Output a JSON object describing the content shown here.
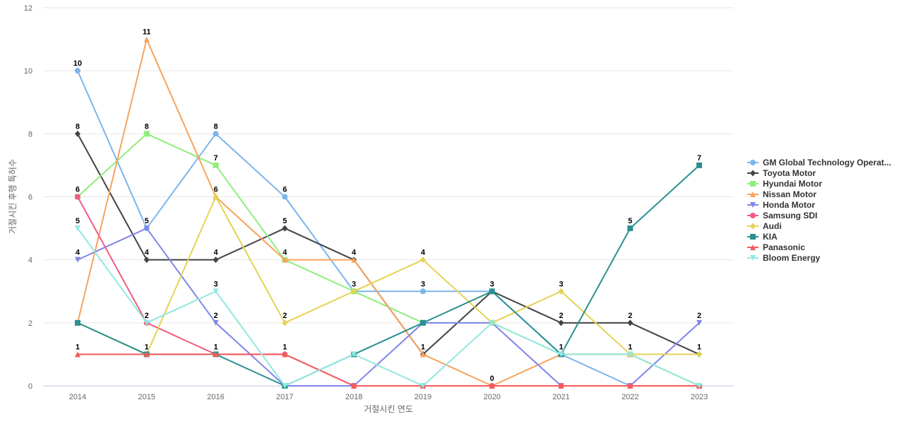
{
  "chart_data": {
    "type": "line",
    "xlabel": "거절시킨 연도",
    "ylabel": "거절시킨 후행 특허수",
    "ylim": [
      0,
      12
    ],
    "yticks": [
      0,
      2,
      4,
      6,
      8,
      10,
      12
    ],
    "categories": [
      "2014",
      "2015",
      "2016",
      "2017",
      "2018",
      "2019",
      "2020",
      "2021",
      "2022",
      "2023"
    ],
    "grid": true,
    "legend_position": "right",
    "series": [
      {
        "name": "GM Global Technology Operat...",
        "color": "#7cb5ec",
        "marker": "circle",
        "values": [
          10,
          5,
          8,
          6,
          3,
          3,
          3,
          1,
          0,
          0
        ],
        "labels": [
          true,
          true,
          true,
          true,
          true,
          true,
          false,
          false,
          false,
          false
        ]
      },
      {
        "name": "Toyota Motor",
        "color": "#434348",
        "marker": "diamond",
        "values": [
          8,
          4,
          4,
          5,
          4,
          1,
          3,
          2,
          2,
          1
        ],
        "labels": [
          true,
          true,
          true,
          true,
          true,
          true,
          true,
          true,
          true,
          true
        ]
      },
      {
        "name": "Hyundai Motor",
        "color": "#90ed7d",
        "marker": "square",
        "values": [
          6,
          8,
          7,
          4,
          3,
          2,
          2,
          1,
          1,
          0
        ],
        "labels": [
          false,
          true,
          true,
          true,
          false,
          false,
          false,
          false,
          false,
          false
        ]
      },
      {
        "name": "Nissan Motor",
        "color": "#f7a35c",
        "marker": "triangle",
        "values": [
          2,
          11,
          6,
          4,
          4,
          1,
          0,
          1,
          1,
          0
        ],
        "labels": [
          false,
          true,
          true,
          false,
          false,
          false,
          true,
          false,
          false,
          false
        ]
      },
      {
        "name": "Honda Motor",
        "color": "#8085e9",
        "marker": "triangle-down",
        "values": [
          4,
          5,
          2,
          0,
          0,
          2,
          2,
          0,
          0,
          2
        ],
        "labels": [
          true,
          true,
          true,
          false,
          false,
          false,
          false,
          false,
          false,
          true
        ]
      },
      {
        "name": "Samsung SDI",
        "color": "#f15c80",
        "marker": "circle",
        "values": [
          6,
          2,
          1,
          1,
          0,
          0,
          0,
          0,
          0,
          0
        ],
        "labels": [
          true,
          true,
          false,
          false,
          false,
          false,
          false,
          false,
          false,
          false
        ]
      },
      {
        "name": "Audi",
        "color": "#e4d354",
        "marker": "diamond",
        "values": [
          2,
          1,
          6,
          2,
          3,
          4,
          2,
          3,
          1,
          1
        ],
        "labels": [
          false,
          false,
          false,
          true,
          false,
          true,
          false,
          true,
          true,
          false
        ]
      },
      {
        "name": "KIA",
        "color": "#2b908f",
        "marker": "square",
        "values": [
          2,
          1,
          1,
          0,
          1,
          2,
          3,
          1,
          5,
          7
        ],
        "labels": [
          false,
          false,
          false,
          false,
          false,
          false,
          true,
          false,
          true,
          true
        ]
      },
      {
        "name": "Panasonic",
        "color": "#f45b5b",
        "marker": "triangle",
        "values": [
          1,
          1,
          1,
          1,
          0,
          0,
          0,
          0,
          0,
          0
        ],
        "labels": [
          true,
          true,
          true,
          true,
          false,
          false,
          false,
          false,
          false,
          false
        ]
      },
      {
        "name": "Bloom Energy",
        "color": "#91e8e1",
        "marker": "triangle-down",
        "values": [
          5,
          2,
          3,
          0,
          1,
          0,
          2,
          1,
          1,
          0
        ],
        "labels": [
          true,
          false,
          true,
          false,
          false,
          false,
          false,
          true,
          false,
          false
        ]
      }
    ]
  }
}
